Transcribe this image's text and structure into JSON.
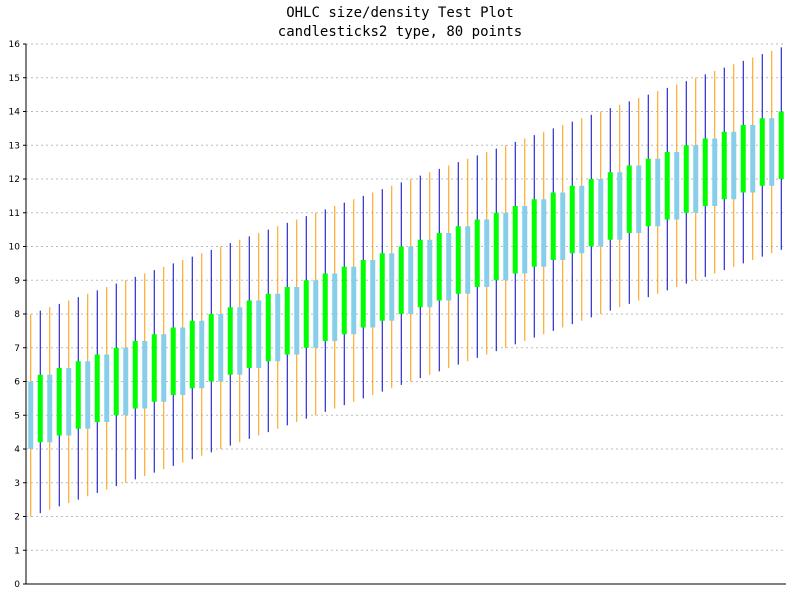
{
  "chart_data": {
    "type": "ohlc-candlestick",
    "title": "OHLC size/density Test Plot",
    "subtitle": "candlesticks2 type, 80 points",
    "xlabel": "",
    "ylabel": "",
    "ylim": [
      0,
      16
    ],
    "y_ticks": [
      0,
      1,
      2,
      3,
      4,
      5,
      6,
      7,
      8,
      9,
      10,
      11,
      12,
      13,
      14,
      15,
      16
    ],
    "grid": "horizontal dotted",
    "legend": "none",
    "point_count": 80,
    "series_rule": {
      "open_start": 4.0,
      "close_start": 6.0,
      "high_start": 8.0,
      "low_start": 2.0,
      "step_per_point": 0.1,
      "green_open_close_offset": [
        0.1,
        0.1
      ]
    },
    "colors": {
      "up_body": "#00ff00",
      "down_body": "#87ceeb",
      "wick_up": "#0000cc",
      "wick_down": "#ff9900",
      "grid": "#bbbbbb",
      "axis": "#000000"
    }
  }
}
